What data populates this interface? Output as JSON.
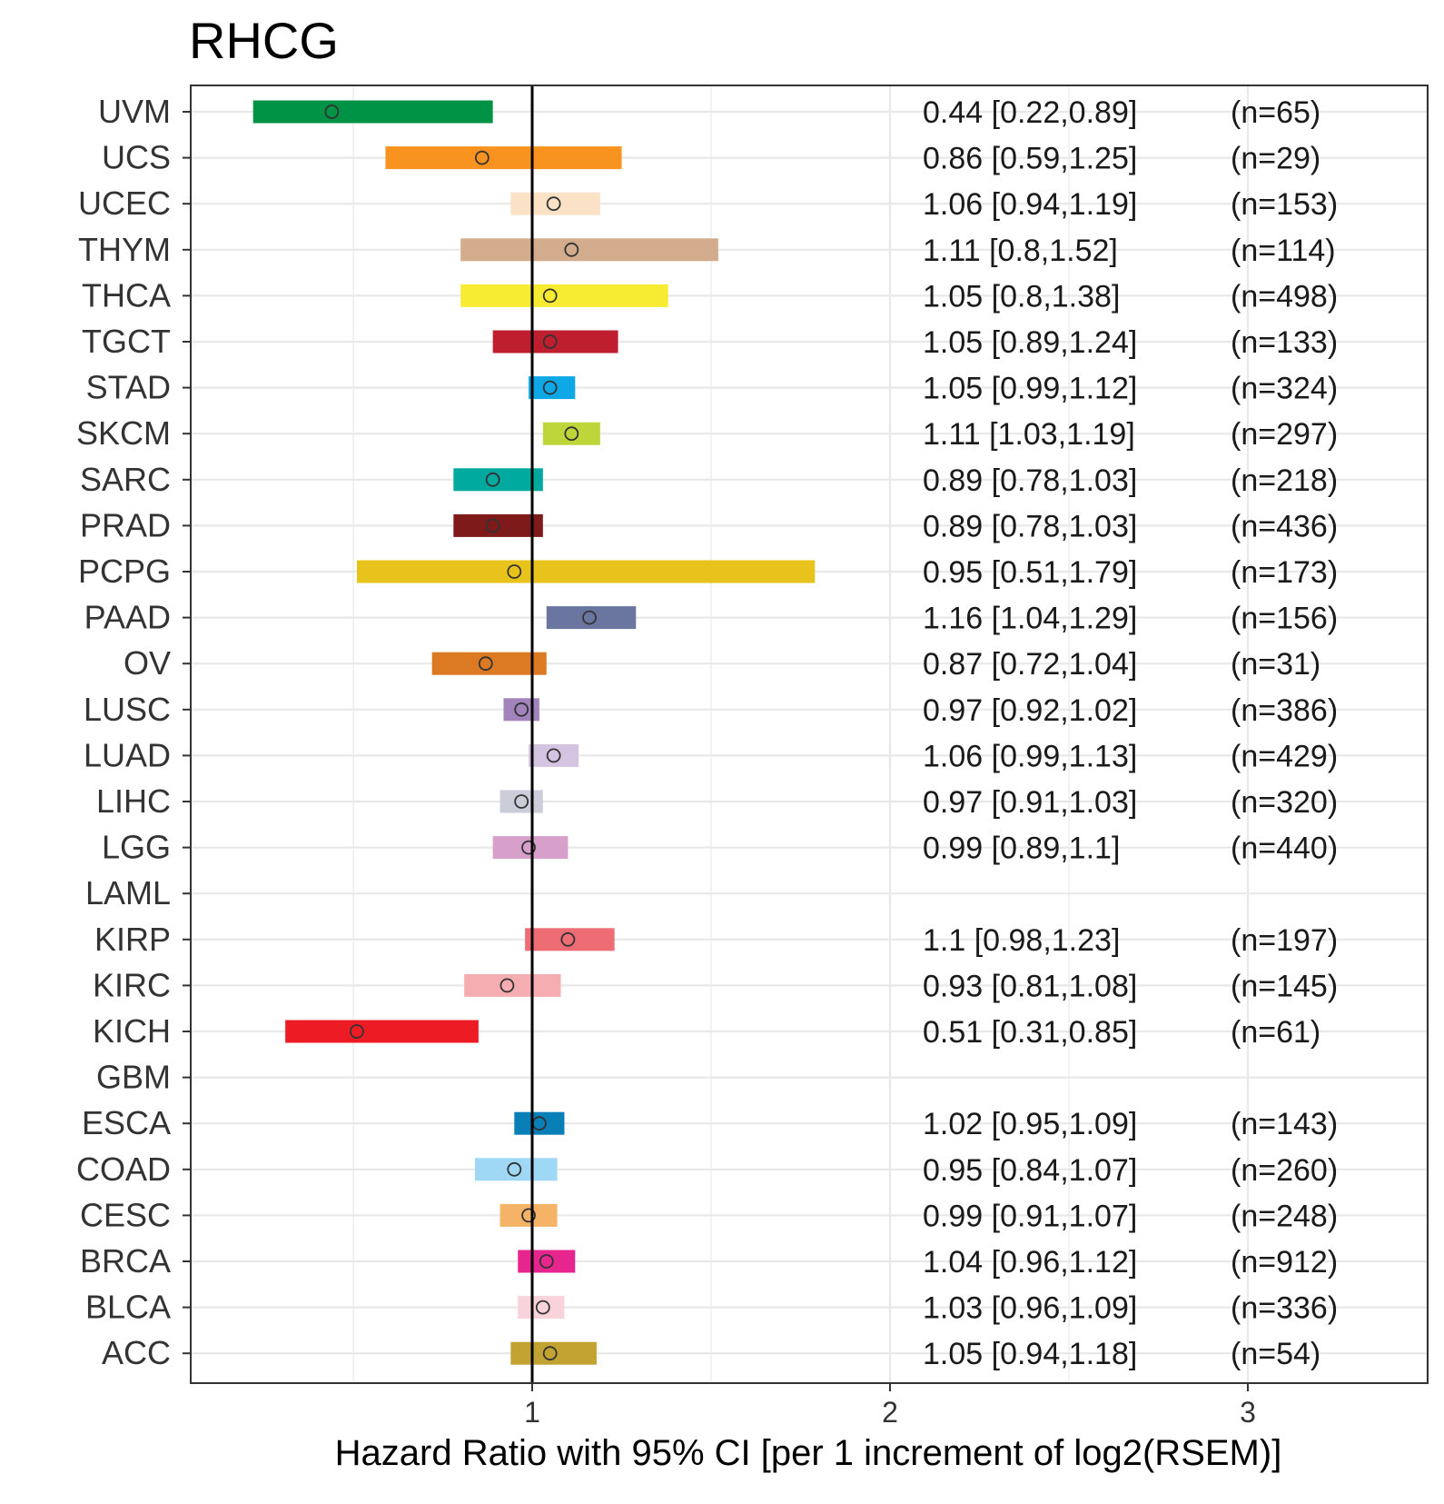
{
  "chart_data": {
    "type": "forest",
    "title": "RHCG",
    "xlabel": "Hazard Ratio with 95% CI [per 1 increment of log2(RSEM)]",
    "ylabel": "",
    "xlim": [
      0.0,
      3.5
    ],
    "x_ticks": [
      1,
      2,
      3
    ],
    "grid": true,
    "reference_line": 1,
    "rows": [
      {
        "label": "UVM",
        "hr": 0.44,
        "lo": 0.22,
        "hi": 0.89,
        "ci_text": "0.44 [0.22,0.89]",
        "n_text": "(n=65)",
        "color": "#009245"
      },
      {
        "label": "UCS",
        "hr": 0.86,
        "lo": 0.59,
        "hi": 1.25,
        "ci_text": "0.86 [0.59,1.25]",
        "n_text": "(n=29)",
        "color": "#F7931E"
      },
      {
        "label": "UCEC",
        "hr": 1.06,
        "lo": 0.94,
        "hi": 1.19,
        "ci_text": "1.06 [0.94,1.19]",
        "n_text": "(n=153)",
        "color": "#FBE1C6"
      },
      {
        "label": "THYM",
        "hr": 1.11,
        "lo": 0.8,
        "hi": 1.52,
        "ci_text": "1.11 [0.8,1.52]",
        "n_text": "(n=114)",
        "color": "#D2AC8D"
      },
      {
        "label": "THCA",
        "hr": 1.05,
        "lo": 0.8,
        "hi": 1.38,
        "ci_text": "1.05 [0.8,1.38]",
        "n_text": "(n=498)",
        "color": "#F7EC31"
      },
      {
        "label": "TGCT",
        "hr": 1.05,
        "lo": 0.89,
        "hi": 1.24,
        "ci_text": "1.05 [0.89,1.24]",
        "n_text": "(n=133)",
        "color": "#BE1E2D"
      },
      {
        "label": "STAD",
        "hr": 1.05,
        "lo": 0.99,
        "hi": 1.12,
        "ci_text": "1.05 [0.99,1.12]",
        "n_text": "(n=324)",
        "color": "#0FA8E6"
      },
      {
        "label": "SKCM",
        "hr": 1.11,
        "lo": 1.03,
        "hi": 1.19,
        "ci_text": "1.11 [1.03,1.19]",
        "n_text": "(n=297)",
        "color": "#BFD63A"
      },
      {
        "label": "SARC",
        "hr": 0.89,
        "lo": 0.78,
        "hi": 1.03,
        "ci_text": "0.89 [0.78,1.03]",
        "n_text": "(n=218)",
        "color": "#00A99D"
      },
      {
        "label": "PRAD",
        "hr": 0.89,
        "lo": 0.78,
        "hi": 1.03,
        "ci_text": "0.89 [0.78,1.03]",
        "n_text": "(n=436)",
        "color": "#7F1A1A"
      },
      {
        "label": "PCPG",
        "hr": 0.95,
        "lo": 0.51,
        "hi": 1.79,
        "ci_text": "0.95 [0.51,1.79]",
        "n_text": "(n=173)",
        "color": "#E8C31C"
      },
      {
        "label": "PAAD",
        "hr": 1.16,
        "lo": 1.04,
        "hi": 1.29,
        "ci_text": "1.16 [1.04,1.29]",
        "n_text": "(n=156)",
        "color": "#6A76A0"
      },
      {
        "label": "OV",
        "hr": 0.87,
        "lo": 0.72,
        "hi": 1.04,
        "ci_text": "0.87 [0.72,1.04]",
        "n_text": "(n=31)",
        "color": "#DB7A22"
      },
      {
        "label": "LUSC",
        "hr": 0.97,
        "lo": 0.92,
        "hi": 1.02,
        "ci_text": "0.97 [0.92,1.02]",
        "n_text": "(n=386)",
        "color": "#A383BC"
      },
      {
        "label": "LUAD",
        "hr": 1.06,
        "lo": 0.99,
        "hi": 1.13,
        "ci_text": "1.06 [0.99,1.13]",
        "n_text": "(n=429)",
        "color": "#D5C4E1"
      },
      {
        "label": "LIHC",
        "hr": 0.97,
        "lo": 0.91,
        "hi": 1.03,
        "ci_text": "0.97 [0.91,1.03]",
        "n_text": "(n=320)",
        "color": "#CBCDDB"
      },
      {
        "label": "LGG",
        "hr": 0.99,
        "lo": 0.89,
        "hi": 1.1,
        "ci_text": "0.99 [0.89,1.1]",
        "n_text": "(n=440)",
        "color": "#D6A0CB"
      },
      {
        "label": "LAML",
        "hr": null,
        "lo": null,
        "hi": null,
        "ci_text": "",
        "n_text": "",
        "color": ""
      },
      {
        "label": "KIRP",
        "hr": 1.1,
        "lo": 0.98,
        "hi": 1.23,
        "ci_text": "1.1 [0.98,1.23]",
        "n_text": "(n=197)",
        "color": "#EE6D74"
      },
      {
        "label": "KIRC",
        "hr": 0.93,
        "lo": 0.81,
        "hi": 1.08,
        "ci_text": "0.93 [0.81,1.08]",
        "n_text": "(n=145)",
        "color": "#F6ADB1"
      },
      {
        "label": "KICH",
        "hr": 0.51,
        "lo": 0.31,
        "hi": 0.85,
        "ci_text": "0.51 [0.31,0.85]",
        "n_text": "(n=61)",
        "color": "#ED1C24"
      },
      {
        "label": "GBM",
        "hr": null,
        "lo": null,
        "hi": null,
        "ci_text": "",
        "n_text": "",
        "color": ""
      },
      {
        "label": "ESCA",
        "hr": 1.02,
        "lo": 0.95,
        "hi": 1.09,
        "ci_text": "1.02 [0.95,1.09]",
        "n_text": "(n=143)",
        "color": "#0A7EB6"
      },
      {
        "label": "COAD",
        "hr": 0.95,
        "lo": 0.84,
        "hi": 1.07,
        "ci_text": "0.95 [0.84,1.07]",
        "n_text": "(n=260)",
        "color": "#9ED8F5"
      },
      {
        "label": "CESC",
        "hr": 0.99,
        "lo": 0.91,
        "hi": 1.07,
        "ci_text": "0.99 [0.91,1.07]",
        "n_text": "(n=248)",
        "color": "#F4B367"
      },
      {
        "label": "BRCA",
        "hr": 1.04,
        "lo": 0.96,
        "hi": 1.12,
        "ci_text": "1.04 [0.96,1.12]",
        "n_text": "(n=912)",
        "color": "#E7258E"
      },
      {
        "label": "BLCA",
        "hr": 1.03,
        "lo": 0.96,
        "hi": 1.09,
        "ci_text": "1.03 [0.96,1.09]",
        "n_text": "(n=336)",
        "color": "#F8D3DA"
      },
      {
        "label": "ACC",
        "hr": 1.05,
        "lo": 0.94,
        "hi": 1.18,
        "ci_text": "1.05 [0.94,1.18]",
        "n_text": "(n=54)",
        "color": "#C2A331"
      }
    ]
  }
}
